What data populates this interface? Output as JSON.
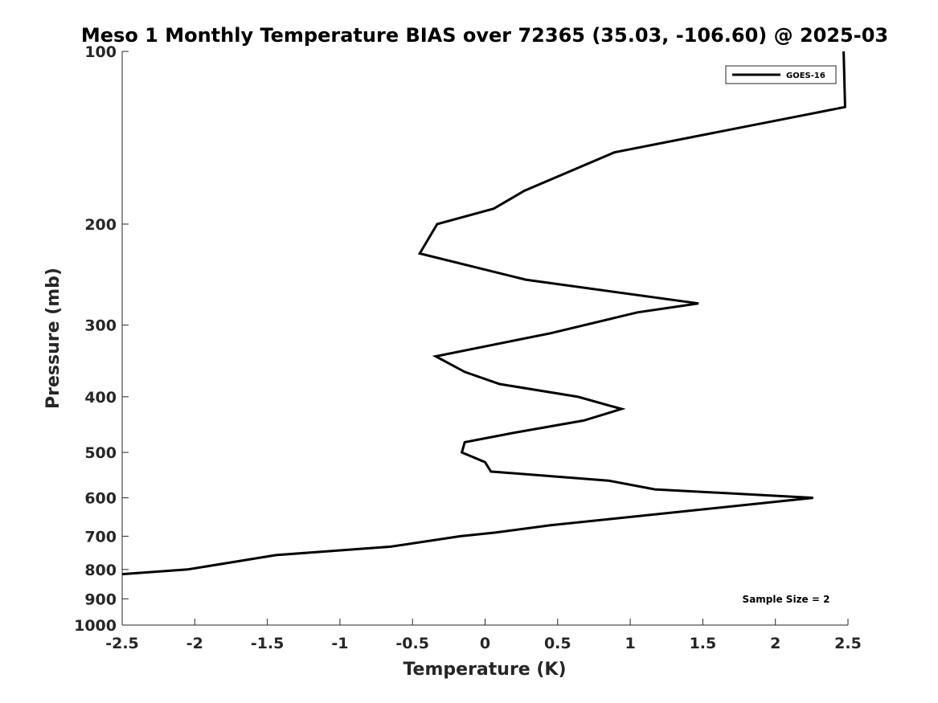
{
  "chart_data": {
    "type": "line",
    "title": "Meso 1 Monthly Temperature BIAS over 72365 (35.03, -106.60) @ 2025-03",
    "xlabel": "Temperature (K)",
    "ylabel": "Pressure (mb)",
    "xlim": [
      -2.5,
      2.5
    ],
    "ylim": [
      100,
      1000
    ],
    "yscale": "log",
    "yreversed": true,
    "x_ticks": [
      -2.5,
      -2,
      -1.5,
      -1,
      -0.5,
      0,
      0.5,
      1,
      1.5,
      2,
      2.5
    ],
    "x_tick_labels": [
      "-2.5",
      "-2",
      "-1.5",
      "-1",
      "-0.5",
      "0",
      "0.5",
      "1",
      "1.5",
      "2",
      "2.5"
    ],
    "y_ticks": [
      100,
      200,
      300,
      400,
      500,
      600,
      700,
      800,
      900,
      1000
    ],
    "y_tick_labels": [
      "100",
      "200",
      "300",
      "400",
      "500",
      "600",
      "700",
      "800",
      "900",
      "1000"
    ],
    "grid": false,
    "legend_position": "top-right",
    "series": [
      {
        "name": "GOES-16",
        "color": "#000000",
        "points": [
          {
            "t": 2.47,
            "p": 100
          },
          {
            "t": 2.48,
            "p": 125
          },
          {
            "t": 0.89,
            "p": 150
          },
          {
            "t": 0.27,
            "p": 175
          },
          {
            "t": 0.06,
            "p": 188
          },
          {
            "t": -0.33,
            "p": 200
          },
          {
            "t": -0.45,
            "p": 225
          },
          {
            "t": 0.28,
            "p": 250
          },
          {
            "t": 1.47,
            "p": 275
          },
          {
            "t": 1.05,
            "p": 285
          },
          {
            "t": 0.45,
            "p": 310
          },
          {
            "t": -0.34,
            "p": 340
          },
          {
            "t": -0.14,
            "p": 362
          },
          {
            "t": 0.1,
            "p": 380
          },
          {
            "t": 0.64,
            "p": 400
          },
          {
            "t": 0.94,
            "p": 420
          },
          {
            "t": 0.68,
            "p": 440
          },
          {
            "t": 0.2,
            "p": 462
          },
          {
            "t": -0.14,
            "p": 480
          },
          {
            "t": -0.16,
            "p": 500
          },
          {
            "t": 0.0,
            "p": 520
          },
          {
            "t": 0.04,
            "p": 540
          },
          {
            "t": 0.85,
            "p": 560
          },
          {
            "t": 1.17,
            "p": 580
          },
          {
            "t": 2.26,
            "p": 600
          },
          {
            "t": 0.95,
            "p": 650
          },
          {
            "t": 0.45,
            "p": 670
          },
          {
            "t": 0.07,
            "p": 690
          },
          {
            "t": -0.17,
            "p": 700
          },
          {
            "t": -0.65,
            "p": 730
          },
          {
            "t": -1.44,
            "p": 755
          },
          {
            "t": -2.05,
            "p": 800
          },
          {
            "t": -2.5,
            "p": 815
          }
        ]
      }
    ],
    "annotation": "Sample Size = 2"
  }
}
